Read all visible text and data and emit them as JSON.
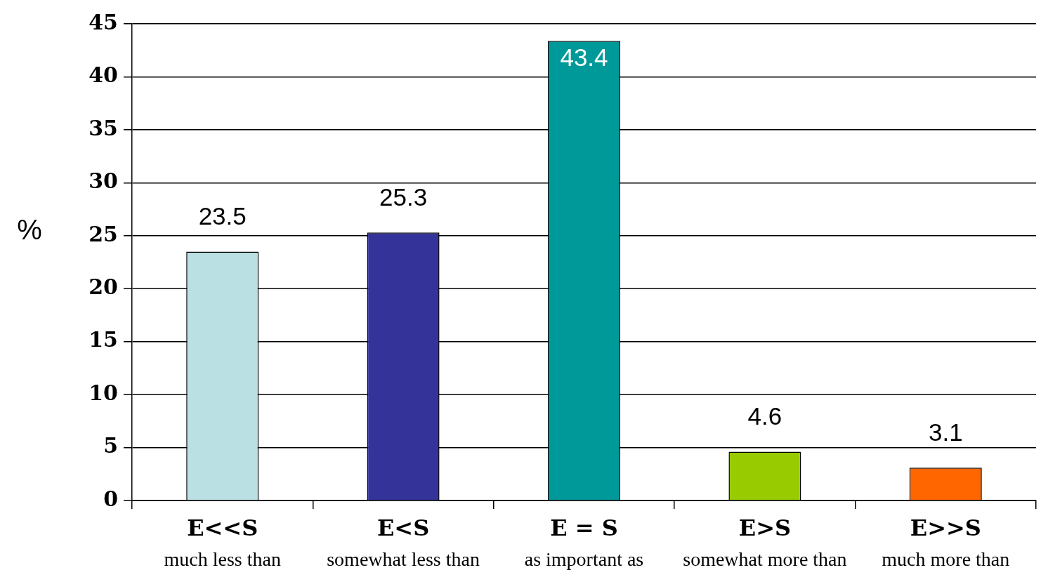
{
  "chart_data": {
    "type": "bar",
    "categories": [
      "E<<S\nmuch less than",
      "E<S\nsomewhat less than",
      "E = S\nas important as",
      "E>S\nsomewhat more than",
      "E>>S\nmuch more than"
    ],
    "values": [
      23.5,
      25.3,
      43.4,
      4.6,
      3.1
    ],
    "colors": [
      "#bbe0e3",
      "#333399",
      "#009999",
      "#99cc00",
      "#ff6600"
    ],
    "ylabel": "%",
    "ylim": [
      0,
      45
    ],
    "yticks": [
      0,
      5,
      10,
      15,
      20,
      25,
      30,
      35,
      40,
      45
    ],
    "grid": "y",
    "data_labels": true
  }
}
